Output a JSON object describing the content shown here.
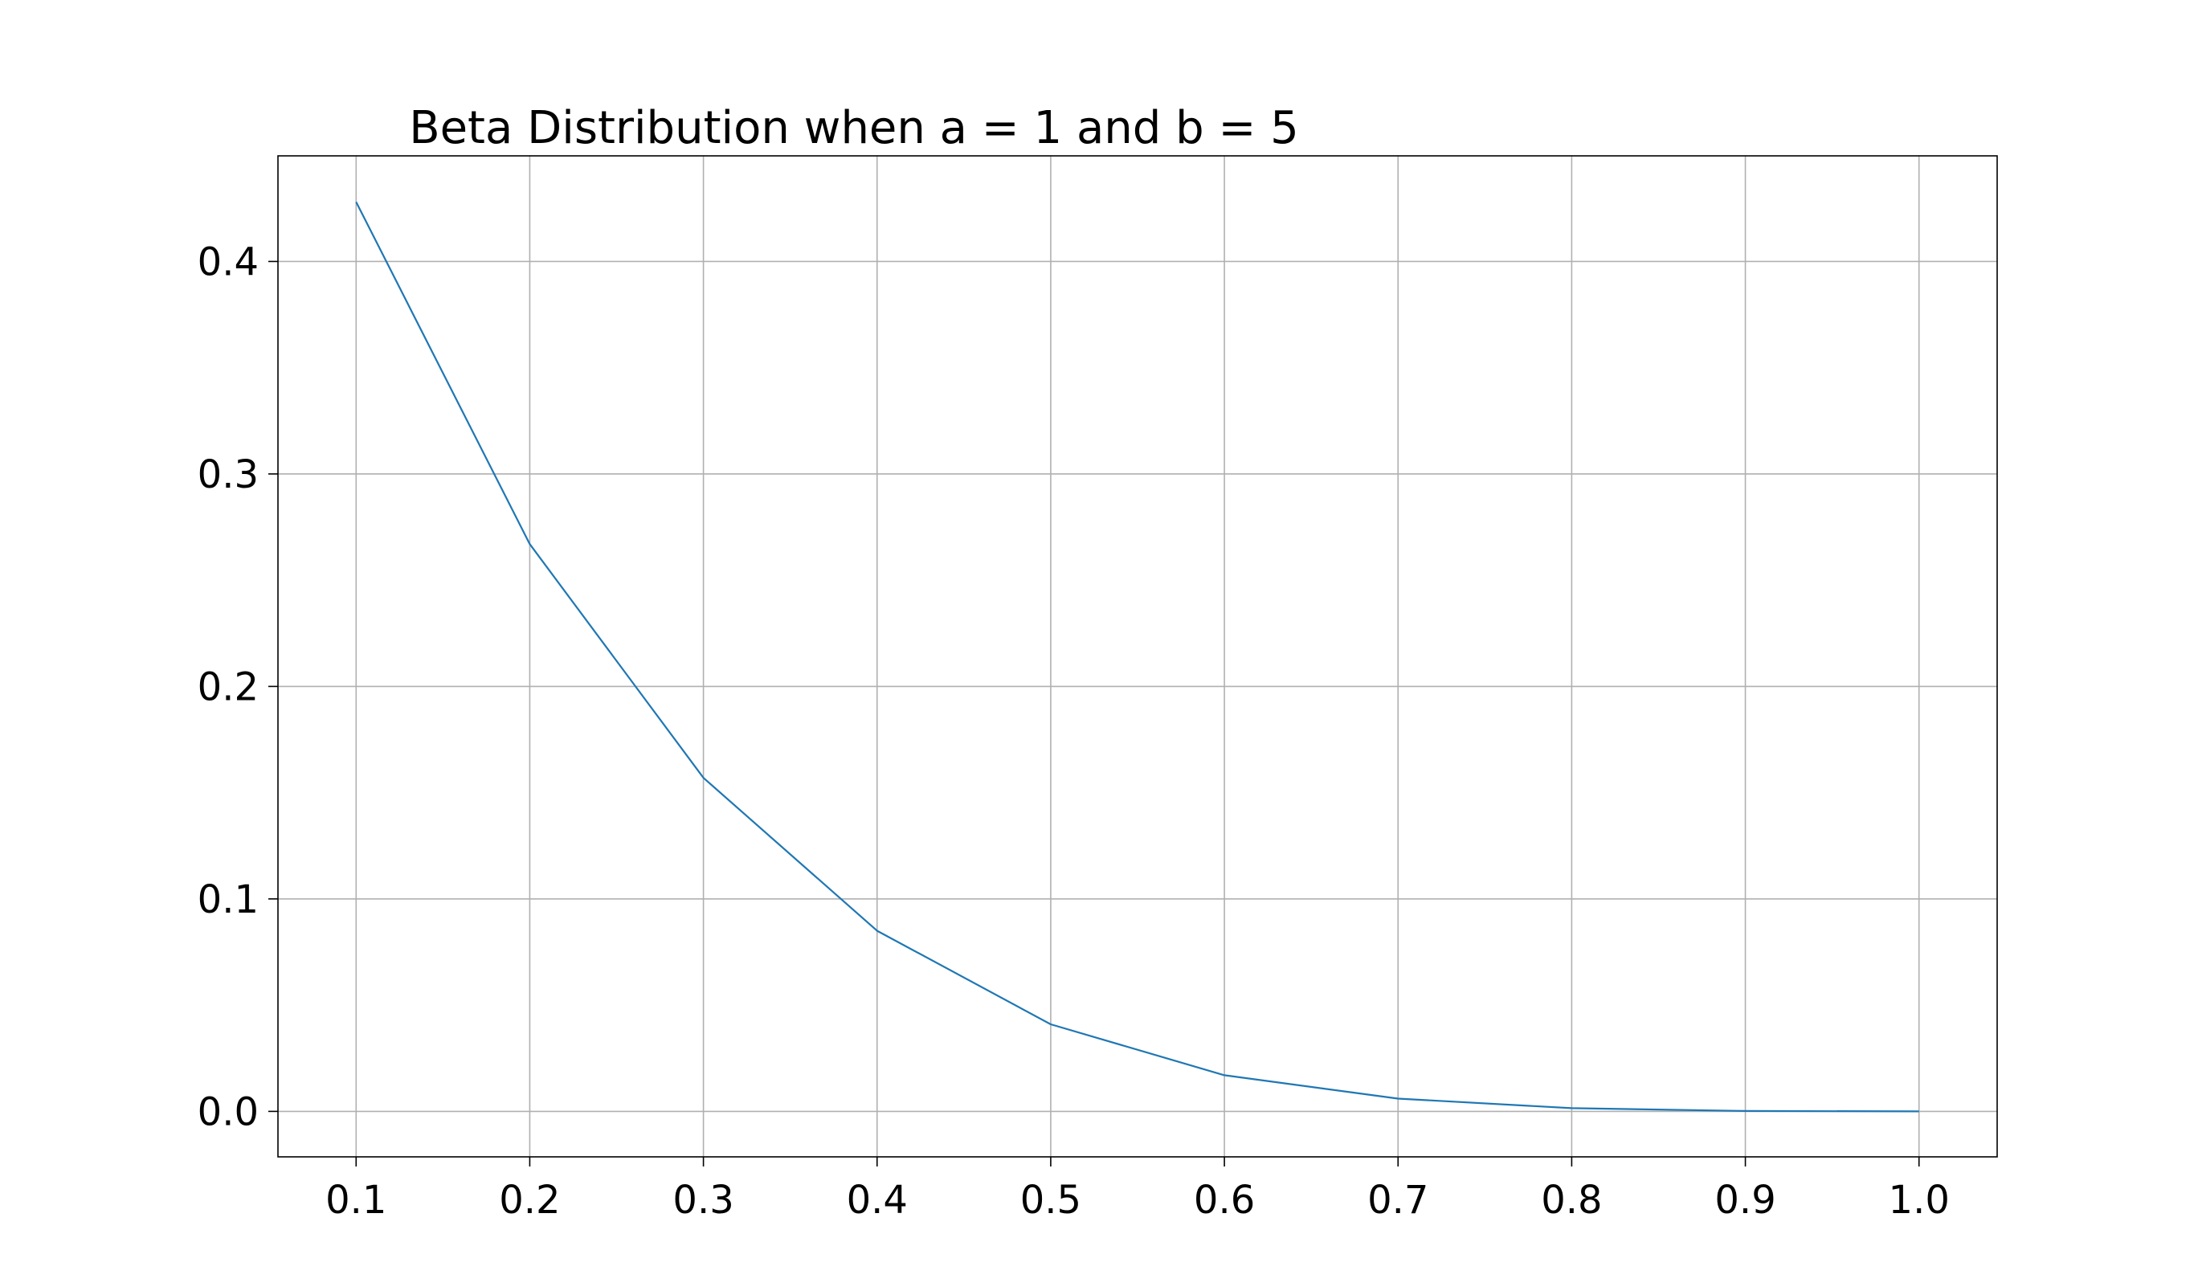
{
  "chart_data": {
    "type": "line",
    "title": "Beta Distribution when a = 1 and b = 5",
    "xlabel": "",
    "ylabel": "",
    "x": [
      0.1,
      0.2,
      0.3,
      0.4,
      0.5,
      0.6,
      0.7,
      0.8,
      0.9,
      1.0
    ],
    "series": [
      {
        "values": [
          0.428,
          0.267,
          0.157,
          0.085,
          0.041,
          0.017,
          0.006,
          0.0015,
          0.0002,
          0.0
        ],
        "color": "#1f77b4"
      }
    ],
    "xticks": [
      0.1,
      0.2,
      0.3,
      0.4,
      0.5,
      0.6,
      0.7,
      0.8,
      0.9,
      1.0
    ],
    "xtick_labels": [
      "0.1",
      "0.2",
      "0.3",
      "0.4",
      "0.5",
      "0.6",
      "0.7",
      "0.8",
      "0.9",
      "1.0"
    ],
    "yticks": [
      0.0,
      0.1,
      0.2,
      0.3,
      0.4
    ],
    "ytick_labels": [
      "0.0",
      "0.1",
      "0.2",
      "0.3",
      "0.4"
    ],
    "xlim": [
      0.055,
      1.045
    ],
    "ylim": [
      -0.0214,
      0.4497
    ],
    "grid": true,
    "legend": "none"
  }
}
